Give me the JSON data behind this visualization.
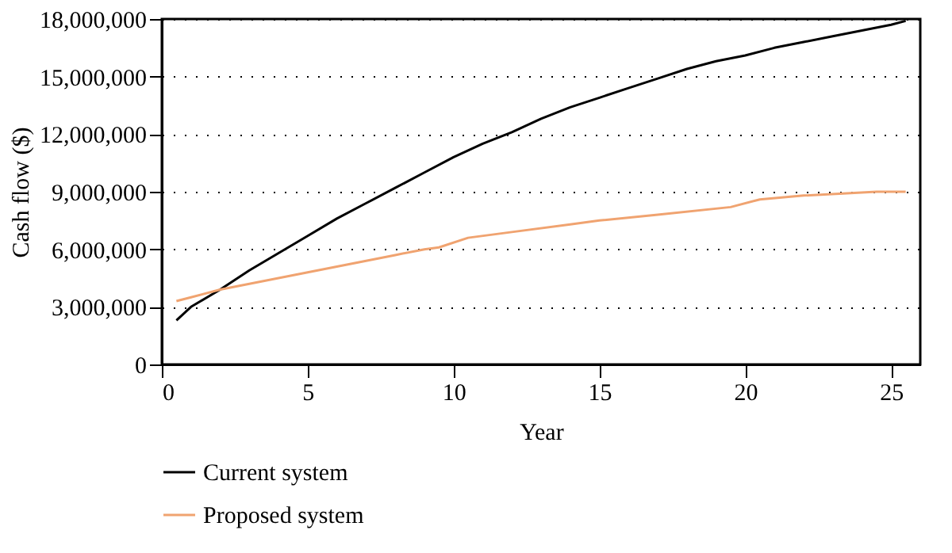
{
  "chart_data": {
    "type": "line",
    "xlabel": "Year",
    "ylabel": "Cash flow ($)",
    "xlim": [
      0,
      26
    ],
    "xticks": [
      0,
      5,
      10,
      15,
      20,
      25
    ],
    "ylim": [
      0,
      18000000
    ],
    "yticks": [
      0,
      {
        "value": 3000000,
        "label": "3,000,000"
      },
      {
        "value": 6000000,
        "label": "6,000,000"
      },
      {
        "value": 9000000,
        "label": "9,000,000"
      },
      {
        "value": 12000000,
        "label": "12,000,000"
      },
      {
        "value": 15000000,
        "label": "15,000,000"
      },
      {
        "value": 18000000,
        "label": "18,000,000"
      }
    ],
    "grid": "y",
    "legend": "bottom left",
    "marker": "none",
    "line_style": "solid",
    "series": [
      {
        "name": "Current system",
        "color": "#000000",
        "x": [
          0.5,
          1,
          2,
          3,
          4,
          5,
          6,
          7,
          8,
          9,
          10,
          11,
          12,
          13,
          14,
          15,
          16,
          17,
          18,
          19,
          20,
          21,
          22,
          23,
          24,
          25,
          25.5
        ],
        "values": [
          2300000,
          3000000,
          3900000,
          4900000,
          5800000,
          6700000,
          7600000,
          8400000,
          9200000,
          10000000,
          10800000,
          11500000,
          12100000,
          12800000,
          13400000,
          13900000,
          14400000,
          14900000,
          15400000,
          15800000,
          16100000,
          16500000,
          16800000,
          17100000,
          17400000,
          17700000,
          17900000
        ]
      },
      {
        "name": "Proposed system",
        "color": "#f0a370",
        "x": [
          0.5,
          1,
          2,
          3,
          4,
          5,
          6,
          7,
          8,
          9,
          9.5,
          10.5,
          12,
          14,
          15,
          17,
          19.5,
          20.5,
          22,
          24.5,
          25.5
        ],
        "values": [
          3300000,
          3500000,
          3900000,
          4200000,
          4500000,
          4800000,
          5100000,
          5400000,
          5700000,
          6000000,
          6100000,
          6600000,
          6900000,
          7300000,
          7500000,
          7800000,
          8200000,
          8600000,
          8800000,
          9000000,
          9000000
        ]
      }
    ]
  }
}
